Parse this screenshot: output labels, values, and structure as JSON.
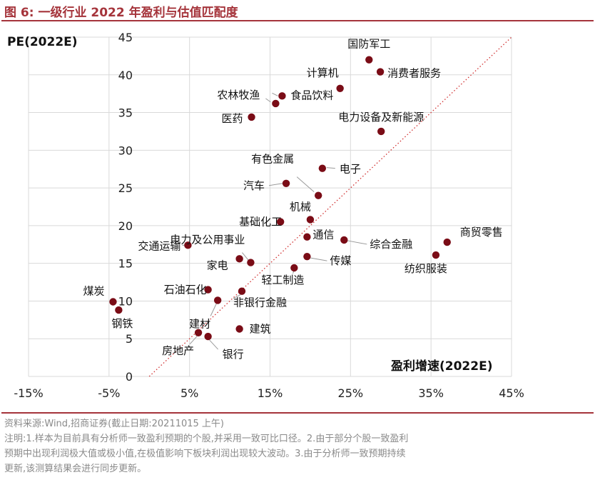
{
  "figure_title": "图 6:  一级行业 2022 年盈利与估值匹配度",
  "source": "资料来源:Wind,招商证券(截止日期:20211015 上午)",
  "note_lines": [
    "注明:1.样本为目前具有分析师一致盈利预期的个股,并采用一致可比口径。2.由于部分个股一致盈利",
    "预期中出现利润极大值或极小值,在极值影响下板块利润出现较大波动。3.由于分析师一致预期持续",
    "更新,该测算结果会进行同步更新。"
  ],
  "colors": {
    "title": "#a5343b",
    "point": "#7a0c16",
    "diagonal": "#d03030",
    "grid": "#d9d9d9"
  },
  "chart_data": {
    "type": "scatter",
    "ylabel": "PE(2022E)",
    "xlabel": "盈利增速(2022E)",
    "xlim": [
      -15,
      45
    ],
    "ylim": [
      0,
      45
    ],
    "xticks": [
      "-15%",
      "-5%",
      "5%",
      "15%",
      "25%",
      "35%",
      "45%"
    ],
    "yticks": [
      "0",
      "5",
      "10",
      "15",
      "20",
      "25",
      "30",
      "35",
      "40",
      "45"
    ],
    "xtick_values": [
      -15,
      -5,
      5,
      15,
      25,
      35,
      45
    ],
    "ytick_values": [
      0,
      5,
      10,
      15,
      20,
      25,
      30,
      35,
      40,
      45
    ],
    "grid": true,
    "diagonal_line": "dotted y = x",
    "points": [
      {
        "label": "国防军工",
        "x": 27.3,
        "y": 42.0
      },
      {
        "label": "消费者服务",
        "x": 28.7,
        "y": 40.4
      },
      {
        "label": "计算机",
        "x": 23.7,
        "y": 38.2
      },
      {
        "label": "食品饮料",
        "x": 16.5,
        "y": 37.2
      },
      {
        "label": "农林牧渔",
        "x": 15.7,
        "y": 36.2
      },
      {
        "label": "医药",
        "x": 12.7,
        "y": 34.4
      },
      {
        "label": "电力设备及新能源",
        "x": 28.8,
        "y": 32.5
      },
      {
        "label": "电子",
        "x": 21.5,
        "y": 27.6
      },
      {
        "label": "有色金属",
        "x": 21.0,
        "y": 24.0
      },
      {
        "label": "汽车",
        "x": 17.0,
        "y": 25.6
      },
      {
        "label": "机械",
        "x": 20.0,
        "y": 20.8
      },
      {
        "label": "基础化工",
        "x": 16.3,
        "y": 20.5
      },
      {
        "label": "通信",
        "x": 19.6,
        "y": 18.5
      },
      {
        "label": "综合金融",
        "x": 24.2,
        "y": 18.1
      },
      {
        "label": "商贸零售",
        "x": 37.0,
        "y": 17.8
      },
      {
        "label": "纺织服装",
        "x": 35.6,
        "y": 16.1
      },
      {
        "label": "交通运输",
        "x": 4.8,
        "y": 17.4
      },
      {
        "label": "电力及公用事业",
        "x": 12.6,
        "y": 15.1
      },
      {
        "label": "家电",
        "x": 11.2,
        "y": 15.6
      },
      {
        "label": "传媒",
        "x": 19.6,
        "y": 15.9
      },
      {
        "label": "轻工制造",
        "x": 18.0,
        "y": 14.4
      },
      {
        "label": "石油石化",
        "x": 7.3,
        "y": 11.5
      },
      {
        "label": "建材",
        "x": 8.5,
        "y": 10.1
      },
      {
        "label": "非银行金融",
        "x": 11.5,
        "y": 11.3
      },
      {
        "label": "煤炭",
        "x": -4.5,
        "y": 9.9
      },
      {
        "label": "钢铁",
        "x": -3.8,
        "y": 8.8
      },
      {
        "label": "建筑",
        "x": 11.2,
        "y": 6.3
      },
      {
        "label": "房地产",
        "x": 6.1,
        "y": 5.8
      },
      {
        "label": "银行",
        "x": 7.3,
        "y": 5.3
      }
    ]
  }
}
